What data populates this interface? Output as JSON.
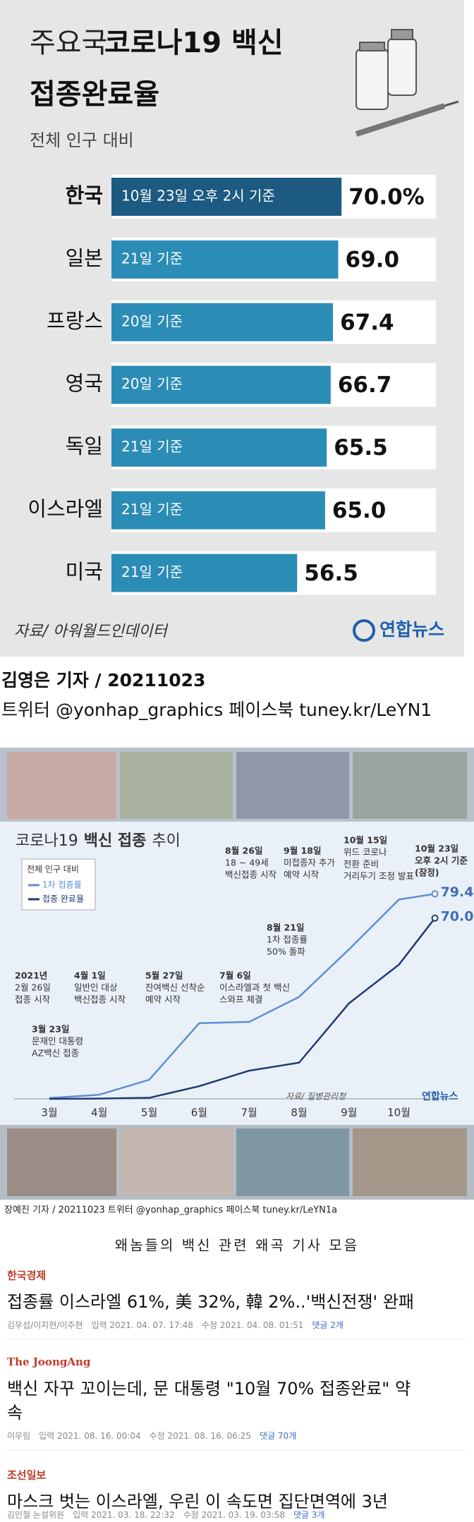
{
  "chart_data": [
    {
      "type": "bar",
      "title": {
        "light": "주요국",
        "bold": "코로나19 백신",
        "line2": "접종완료율"
      },
      "subtitle": "전체 인구 대비",
      "categories": [
        "한국",
        "일본",
        "프랑스",
        "영국",
        "독일",
        "이스라엘",
        "미국"
      ],
      "values": [
        70.0,
        69.0,
        67.4,
        66.7,
        65.5,
        65.0,
        56.5
      ],
      "value_labels": [
        "70.0%",
        "69.0",
        "67.4",
        "66.7",
        "65.5",
        "65.0",
        "56.5"
      ],
      "bar_notes": [
        "10월 23일 오후 2시 기준",
        "21일 기준",
        "20일 기준",
        "20일 기준",
        "21일 기준",
        "21일 기준",
        "21일 기준"
      ],
      "colors": {
        "highlight": "#1c5a82",
        "default": "#2b8cb6"
      },
      "xlim": [
        0,
        100
      ],
      "source": "자료/ 아워월드인데이터",
      "logo": "연합뉴스"
    },
    {
      "type": "line",
      "title": {
        "normal": "코로나19",
        "bold": "백신 접종",
        "normal2": "추이"
      },
      "legend_title": "전체 인구 대비",
      "categories": [
        "3월",
        "4월",
        "5월",
        "6월",
        "7월",
        "8월",
        "9월",
        "10월"
      ],
      "series": [
        {
          "name": "1차 접종률",
          "color": "#5d8fd2",
          "values": [
            0.3,
            1.6,
            7.4,
            29.3,
            29.8,
            39.5,
            57.9,
            77.2
          ],
          "end_value": 79.4,
          "end_label": "79.4%"
        },
        {
          "name": "접종 완료율",
          "color": "#1f3b73",
          "values": [
            0,
            0.1,
            0.4,
            4.9,
            10.9,
            14.0,
            37.0,
            52.0
          ],
          "end_value": 70.0,
          "end_label": "70.0%"
        }
      ],
      "ylim": [
        0,
        100
      ],
      "annotations": [
        [
          "2021년",
          "2월 26일",
          "접종 시작"
        ],
        [
          "3월 23일",
          "문재인 대통령",
          "AZ백신 접종"
        ],
        [
          "4월 1일",
          "일반인 대상",
          "백신접종 시작"
        ],
        [
          "5월 27일",
          "잔여백신 선착순",
          "예약 시작"
        ],
        [
          "7월 6일",
          "이스라엘과 첫 백신",
          "스와프 체결"
        ],
        [
          "8월 21일",
          "1차 접종률",
          "50% 돌파"
        ],
        [
          "8월 26일",
          "18 ~ 49세",
          "백신접종 시작"
        ],
        [
          "9월 18일",
          "미접종자 추가",
          "예약 시작"
        ],
        [
          "10월 15일",
          "위드 코로나",
          "전환 준비",
          "거리두기 조정 발표"
        ],
        [
          "10월 23일",
          "오후 2시 기준",
          "(잠정)"
        ]
      ],
      "source": "자료/ 질병관리청",
      "logo": "연합뉴스"
    }
  ],
  "credits1": [
    "김영은 기자 / 20211023",
    "트위터 @yonhap_graphics  페이스북 tuney.kr/LeYN1"
  ],
  "credits2": "장예진 기자 / 20211023  트위터 @yonhap_graphics  페이스북 tuney.kr/LeYN1a",
  "heading": "왜놈들의 백신 관련 왜곡 기사 모음",
  "articles": [
    {
      "source": "한국경제",
      "headline": [
        "접종률 이스라엘 61%, 美 32%, 韓 2%..'백신전쟁' 완패"
      ],
      "author": "김우섭/이지현/이주현",
      "input": "입력 2021. 04. 07. 17:48",
      "edit": "수정 2021. 04. 08. 01:51",
      "comments": "댓글 2개"
    },
    {
      "source": "The JoongAng",
      "headline": [
        "백신 자꾸 꼬이는데, 문 대통령 \"10월 70% 접종완료\" 약",
        "속"
      ],
      "author": "이우림",
      "input": "입력 2021. 08. 16. 00:04",
      "edit": "수정 2021. 08. 16. 06:25",
      "comments": "댓글 70개"
    },
    {
      "source": "조선일보",
      "headline": [
        "마스크 벗는 이스라엘, 우린 이 속도면 집단면역에 3년"
      ],
      "author": "김민철 논설위원",
      "input": "입력 2021. 03. 18. 22:32",
      "edit": "수정 2021. 03. 19. 03:58",
      "comments": "댓글 3개"
    }
  ]
}
